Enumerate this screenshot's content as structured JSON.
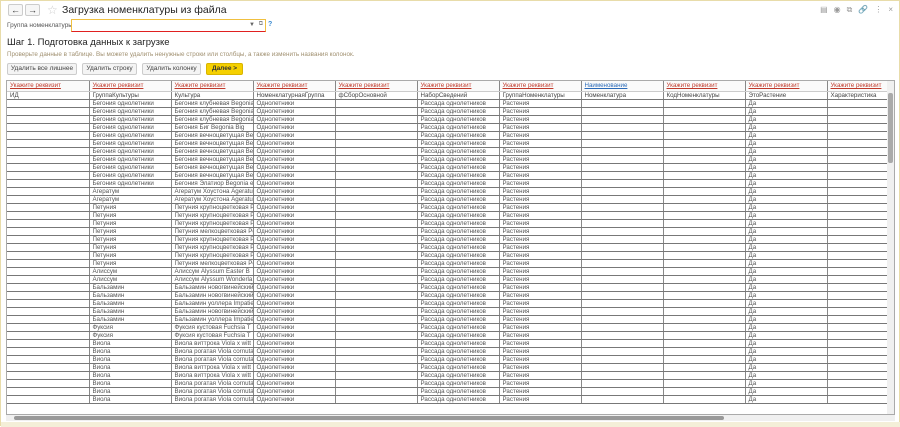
{
  "window": {
    "title": "Загрузка номенклатуры из файла",
    "back": "←",
    "forward": "→",
    "star": "☆",
    "tools": [
      "▤",
      "◉",
      "⧉",
      "🔗",
      "⋮",
      "×"
    ]
  },
  "group_field": {
    "label": "Группа номенклатуры:",
    "value": "",
    "help": "?"
  },
  "step": {
    "title": "Шаг 1. Подготовка данных к загрузке",
    "hint": "Проверьте данные в таблице. Вы можете удалить ненужные строки или столбцы, а также изменить названия колонок."
  },
  "buttons": {
    "delete_extra": "Удалить все лишнее",
    "delete_row": "Удалить строку",
    "delete_column": "Удалить колонку",
    "next": "Далее >"
  },
  "table": {
    "headers": [
      "Укажите реквизит",
      "Укажите реквизит",
      "Укажите реквизит",
      "Укажите реквизит",
      "Укажите реквизит",
      "Укажите реквизит",
      "Укажите реквизит",
      "Наименование",
      "Укажите реквизит",
      "Укажите реквизит",
      "Укажите реквизит"
    ],
    "column_names": [
      "ИД",
      "ГруппаКультуры",
      "Культура",
      "НоменклатурнаяГруппа",
      "фСборОсновной",
      "НаборСведений",
      "ГруппаНоменклатуры",
      "Номенклатура",
      "КодНоменклатуры",
      "ЭтоРастение",
      "Характеристика"
    ],
    "rows": [
      [
        "",
        "Бегония однолетники",
        "Бегония клубневая Begonia",
        "Однолетники",
        "",
        "Рассада однолетников",
        "Растения",
        "",
        "",
        "Да",
        ""
      ],
      [
        "",
        "Бегония однолетники",
        "Бегония клубневая Begonia",
        "Однолетники",
        "",
        "Рассада однолетников",
        "Растения",
        "",
        "",
        "Да",
        ""
      ],
      [
        "",
        "Бегония однолетники",
        "Бегония клубневая Begonia",
        "Однолетники",
        "",
        "Рассада однолетников",
        "Растения",
        "",
        "",
        "Да",
        ""
      ],
      [
        "",
        "Бегония однолетники",
        "Бегония Биг Begonia Big",
        "Однолетники",
        "",
        "Рассада однолетников",
        "Растения",
        "",
        "",
        "Да",
        ""
      ],
      [
        "",
        "Бегония однолетники",
        "Бегония вечноцветущая Be",
        "Однолетники",
        "",
        "Рассада однолетников",
        "Растения",
        "",
        "",
        "Да",
        ""
      ],
      [
        "",
        "Бегония однолетники",
        "Бегония вечноцветущая Be",
        "Однолетники",
        "",
        "Рассада однолетников",
        "Растения",
        "",
        "",
        "Да",
        ""
      ],
      [
        "",
        "Бегония однолетники",
        "Бегония вечноцветущая Be",
        "Однолетники",
        "",
        "Рассада однолетников",
        "Растения",
        "",
        "",
        "Да",
        ""
      ],
      [
        "",
        "Бегония однолетники",
        "Бегония вечноцветущая Be",
        "Однолетники",
        "",
        "Рассада однолетников",
        "Растения",
        "",
        "",
        "Да",
        ""
      ],
      [
        "",
        "Бегония однолетники",
        "Бегония вечноцветущая Be",
        "Однолетники",
        "",
        "Рассада однолетников",
        "Растения",
        "",
        "",
        "Да",
        ""
      ],
      [
        "",
        "Бегония однолетники",
        "Бегония вечноцветущая Be",
        "Однолетники",
        "",
        "Рассада однолетников",
        "Растения",
        "",
        "",
        "Да",
        ""
      ],
      [
        "",
        "Бегония однолетники",
        "Бегония Элатиор Begonia e",
        "Однолетники",
        "",
        "Рассада однолетников",
        "Растения",
        "",
        "",
        "Да",
        ""
      ],
      [
        "",
        "Агератум",
        "Агератум Хоустона Ageratu",
        "Однолетники",
        "",
        "Рассада однолетников",
        "Растения",
        "",
        "",
        "Да",
        ""
      ],
      [
        "",
        "Агератум",
        "Агератум Хоустона Ageratu",
        "Однолетники",
        "",
        "Рассада однолетников",
        "Растения",
        "",
        "",
        "Да",
        ""
      ],
      [
        "",
        "Петуния",
        "Петуния крупноцветковая P",
        "Однолетники",
        "",
        "Рассада однолетников",
        "Растения",
        "",
        "",
        "Да",
        ""
      ],
      [
        "",
        "Петуния",
        "Петуния крупноцветковая P",
        "Однолетники",
        "",
        "Рассада однолетников",
        "Растения",
        "",
        "",
        "Да",
        ""
      ],
      [
        "",
        "Петуния",
        "Петуния крупноцветковая P",
        "Однолетники",
        "",
        "Рассада однолетников",
        "Растения",
        "",
        "",
        "Да",
        ""
      ],
      [
        "",
        "Петуния",
        "Петуния мелкоцветковая Pe",
        "Однолетники",
        "",
        "Рассада однолетников",
        "Растения",
        "",
        "",
        "Да",
        ""
      ],
      [
        "",
        "Петуния",
        "Петуния крупноцветковая P",
        "Однолетники",
        "",
        "Рассада однолетников",
        "Растения",
        "",
        "",
        "Да",
        ""
      ],
      [
        "",
        "Петуния",
        "Петуния крупноцветковая P",
        "Однолетники",
        "",
        "Рассада однолетников",
        "Растения",
        "",
        "",
        "Да",
        ""
      ],
      [
        "",
        "Петуния",
        "Петуния крупноцветковая P",
        "Однолетники",
        "",
        "Рассада однолетников",
        "Растения",
        "",
        "",
        "Да",
        ""
      ],
      [
        "",
        "Петуния",
        "Петуния мелкоцветковая Pe",
        "Однолетники",
        "",
        "Рассада однолетников",
        "Растения",
        "",
        "",
        "Да",
        ""
      ],
      [
        "",
        "Алиссум",
        "Алиссум Alyssum Easter B",
        "Однолетники",
        "",
        "Рассада однолетников",
        "Растения",
        "",
        "",
        "Да",
        ""
      ],
      [
        "",
        "Алиссум",
        "Алиссум Alyssum Wonderla",
        "Однолетники",
        "",
        "Рассада однолетников",
        "Растения",
        "",
        "",
        "Да",
        ""
      ],
      [
        "",
        "Бальзамин",
        "Бальзамин новогвинейский",
        "Однолетники",
        "",
        "Рассада однолетников",
        "Растения",
        "",
        "",
        "Да",
        ""
      ],
      [
        "",
        "Бальзамин",
        "Бальзамин новогвинейский",
        "Однолетники",
        "",
        "Рассада однолетников",
        "Растения",
        "",
        "",
        "Да",
        ""
      ],
      [
        "",
        "Бальзамин",
        "Бальзамин уоллера Impatie",
        "Однолетники",
        "",
        "Рассада однолетников",
        "Растения",
        "",
        "",
        "Да",
        ""
      ],
      [
        "",
        "Бальзамин",
        "Бальзамин новогвинейский",
        "Однолетники",
        "",
        "Рассада однолетников",
        "Растения",
        "",
        "",
        "Да",
        ""
      ],
      [
        "",
        "Бальзамин",
        "Бальзамин уоллера Impatie",
        "Однолетники",
        "",
        "Рассада однолетников",
        "Растения",
        "",
        "",
        "Да",
        ""
      ],
      [
        "",
        "Фуксия",
        "Фуксия кустовая Fuchsia T",
        "Однолетники",
        "",
        "Рассада однолетников",
        "Растения",
        "",
        "",
        "Да",
        ""
      ],
      [
        "",
        "Фуксия",
        "Фуксия кустовая Fuchsia T",
        "Однолетники",
        "",
        "Рассада однолетников",
        "Растения",
        "",
        "",
        "Да",
        ""
      ],
      [
        "",
        "Виола",
        "Виола виттрока Viola x witt",
        "Однолетники",
        "",
        "Рассада однолетников",
        "Растения",
        "",
        "",
        "Да",
        ""
      ],
      [
        "",
        "Виола",
        "Виола рогатая Viola cornuta",
        "Однолетники",
        "",
        "Рассада однолетников",
        "Растения",
        "",
        "",
        "Да",
        ""
      ],
      [
        "",
        "Виола",
        "Виола рогатая Viola cornuta",
        "Однолетники",
        "",
        "Рассада однолетников",
        "Растения",
        "",
        "",
        "Да",
        ""
      ],
      [
        "",
        "Виола",
        "Виола виттрока Viola x witt",
        "Однолетники",
        "",
        "Рассада однолетников",
        "Растения",
        "",
        "",
        "Да",
        ""
      ],
      [
        "",
        "Виола",
        "Виола виттрока Viola x witt",
        "Однолетники",
        "",
        "Рассада однолетников",
        "Растения",
        "",
        "",
        "Да",
        ""
      ],
      [
        "",
        "Виола",
        "Виола рогатая Viola cornuta",
        "Однолетники",
        "",
        "Рассада однолетников",
        "Растения",
        "",
        "",
        "Да",
        ""
      ],
      [
        "",
        "Виола",
        "Виола рогатая Viola cornuta",
        "Однолетники",
        "",
        "Рассада однолетников",
        "Растения",
        "",
        "",
        "Да",
        ""
      ],
      [
        "",
        "Виола",
        "Виола рогатая Viola cornuta",
        "Однолетники",
        "",
        "Рассада однолетников",
        "Растения",
        "",
        "",
        "Да",
        ""
      ]
    ]
  }
}
